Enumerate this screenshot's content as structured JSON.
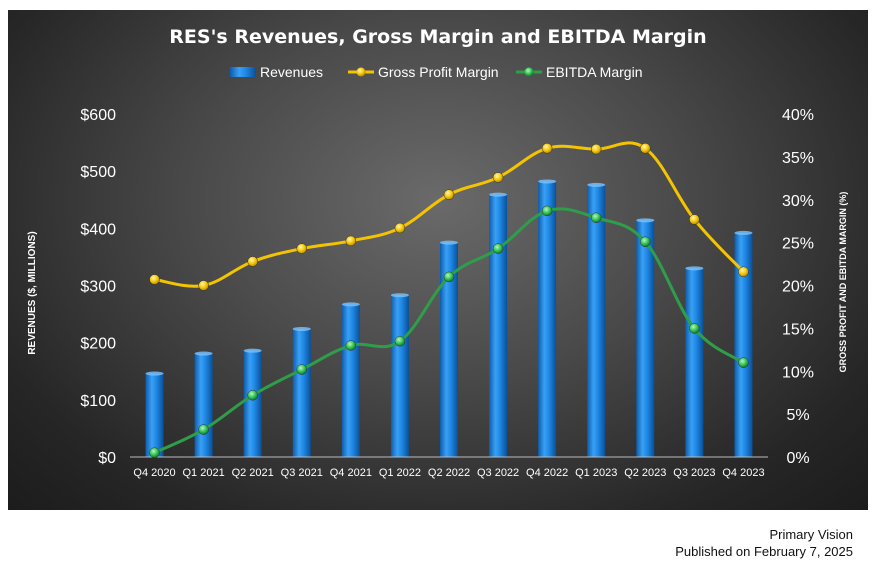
{
  "chart_data": {
    "type": "bar+line",
    "title": "RES's Revenues, Gross Margin and EBITDA Margin",
    "categories": [
      "Q4 2020",
      "Q1 2021",
      "Q2 2021",
      "Q3 2021",
      "Q4 2021",
      "Q1 2022",
      "Q2 2022",
      "Q3 2022",
      "Q4 2022",
      "Q1 2023",
      "Q2 2023",
      "Q3 2023",
      "Q4 2023"
    ],
    "ylabel_left": "REVENUES ($, MILLIONS)",
    "ylabel_right": "GROSS PROFIT AND EBITDA MARGIN (%)",
    "ylim_left": [
      0,
      600
    ],
    "ylim_right": [
      0,
      40
    ],
    "left_ticks": [
      "$0",
      "$100",
      "$200",
      "$300",
      "$400",
      "$500",
      "$600"
    ],
    "right_ticks": [
      "0%",
      "5%",
      "10%",
      "15%",
      "20%",
      "25%",
      "30%",
      "35%",
      "40%"
    ],
    "legend_position": "top",
    "series": [
      {
        "name": "Revenues",
        "kind": "bar",
        "axis": "left",
        "color": "#1e88e5",
        "values": [
          146,
          181,
          186,
          224,
          267,
          283,
          375,
          459,
          482,
          476,
          414,
          330,
          392
        ]
      },
      {
        "name": "Gross Profit Margin",
        "kind": "line",
        "axis": "right",
        "color": "#f5c400",
        "values": [
          20.7,
          20.0,
          22.8,
          24.3,
          25.2,
          26.7,
          30.6,
          32.6,
          36.0,
          35.9,
          36.0,
          27.7,
          21.6
        ]
      },
      {
        "name": "EBITDA Margin",
        "kind": "line",
        "axis": "right",
        "color": "#2e9e4a",
        "values": [
          0.5,
          3.2,
          7.2,
          10.2,
          13.0,
          13.5,
          21.0,
          24.3,
          28.7,
          27.9,
          25.1,
          15.0,
          11.0
        ]
      }
    ]
  },
  "footer": {
    "source": "Primary Vision",
    "published": "Published on February 7, 2025"
  }
}
